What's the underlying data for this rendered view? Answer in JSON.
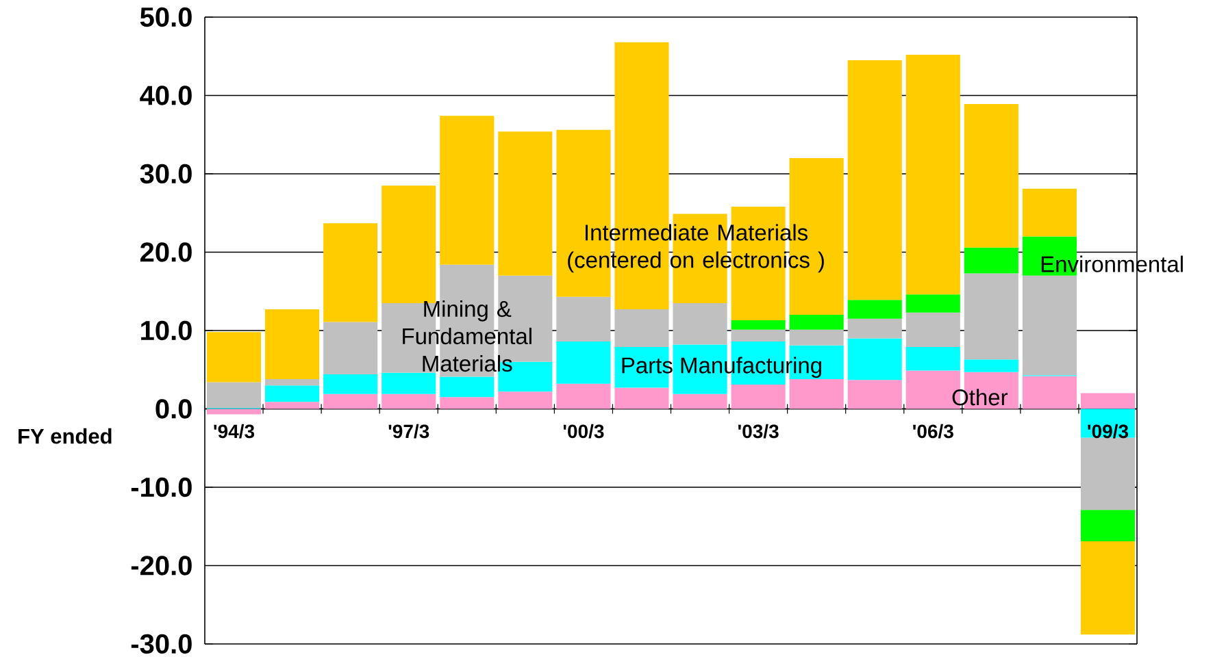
{
  "chart_data": {
    "type": "bar",
    "stacked": true,
    "xlabel": "FY ended",
    "categories": [
      "'94/3",
      null,
      null,
      "'97/3",
      null,
      null,
      "'00/3",
      null,
      null,
      "'03/3",
      null,
      null,
      "'06/3",
      null,
      null,
      "'09/3"
    ],
    "series": [
      {
        "name": "Other",
        "color": "#ff99cc",
        "values": [
          -0.7,
          0.9,
          1.9,
          1.9,
          1.5,
          2.2,
          3.2,
          2.7,
          1.9,
          3.1,
          3.8,
          3.7,
          4.9,
          4.7,
          4.2,
          2.0
        ]
      },
      {
        "name": "Parts Manufacturing",
        "color": "#00ffff",
        "values": [
          0.1,
          2.1,
          2.5,
          2.7,
          2.6,
          3.8,
          5.4,
          5.2,
          6.3,
          5.5,
          4.3,
          5.3,
          3.0,
          1.6,
          0.1,
          -3.7
        ]
      },
      {
        "name": "Mining & Fundamental Materials",
        "color": "#c0c0c0",
        "values": [
          3.3,
          0.8,
          6.7,
          8.9,
          14.3,
          11.0,
          5.7,
          4.8,
          5.3,
          1.5,
          2.0,
          2.5,
          4.4,
          11.0,
          12.7,
          -9.2
        ]
      },
      {
        "name": "Environmental",
        "color": "#00ff00",
        "values": [
          null,
          null,
          null,
          null,
          null,
          null,
          null,
          null,
          null,
          1.2,
          1.9,
          2.4,
          2.3,
          3.3,
          5.0,
          -4.0
        ]
      },
      {
        "name": "Intermediate Materials (centered on electronics )",
        "color": "#ffcc00",
        "values": [
          6.4,
          8.9,
          12.6,
          15.0,
          19.0,
          18.4,
          21.3,
          34.1,
          11.4,
          14.5,
          20.0,
          30.6,
          30.6,
          18.3,
          6.1,
          -11.9
        ]
      }
    ],
    "ylim": [
      -30,
      50
    ],
    "yticks": [
      {
        "value": -30,
        "label": "-30.0"
      },
      {
        "value": -20,
        "label": "-20.0"
      },
      {
        "value": -10,
        "label": "-10.0"
      },
      {
        "value": 0,
        "label": "0.0"
      },
      {
        "value": 10,
        "label": "10.0"
      },
      {
        "value": 20,
        "label": "20.0"
      },
      {
        "value": 30,
        "label": "30.0"
      },
      {
        "value": 40,
        "label": "40.0"
      },
      {
        "value": 50,
        "label": "50.0"
      }
    ],
    "grid": "y"
  }
}
